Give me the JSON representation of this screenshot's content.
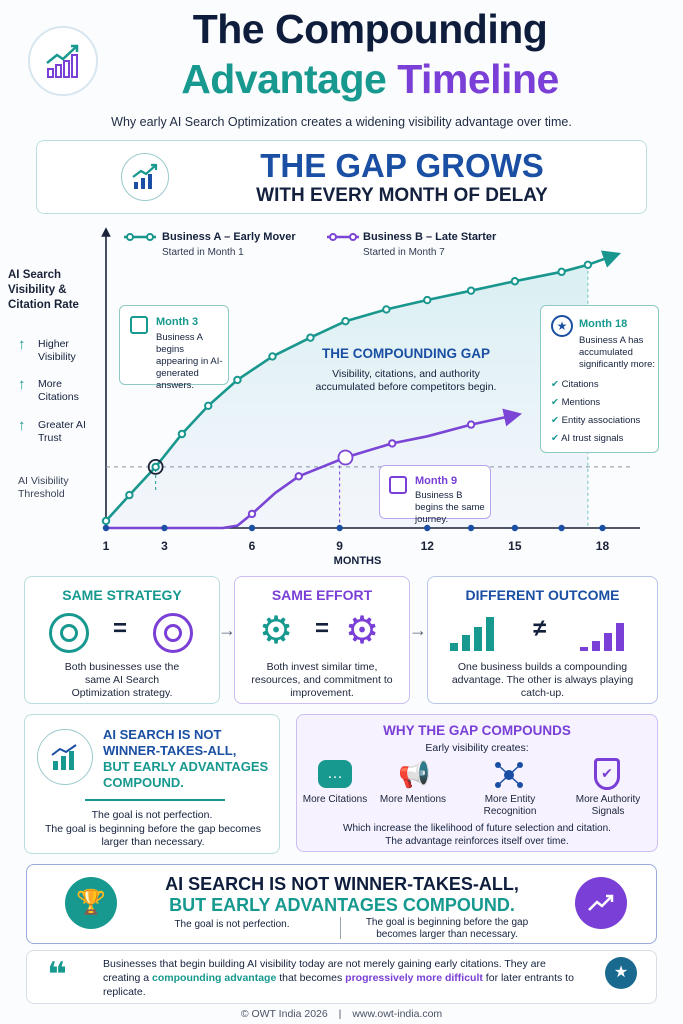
{
  "header": {
    "title_line1": "The Compounding",
    "title_line2a": "Advantage",
    "title_line2b": "Timeline",
    "subtitle": "Why early AI Search Optimization creates a widening visibility advantage over time."
  },
  "gap_box": {
    "headline": "THE GAP GROWS",
    "subline": "WITH EVERY MONTH OF DELAY"
  },
  "chart_data": {
    "type": "line",
    "xlabel": "MONTHS",
    "ylabel": "AI Search Visibility & Citation Rate",
    "x_ticks": [
      1,
      3,
      6,
      9,
      12,
      15,
      18
    ],
    "x_range": [
      1,
      18.6
    ],
    "threshold_label": "AI Visibility Threshold",
    "y_benefits": [
      "Higher Visibility",
      "More Citations",
      "Greater AI Trust"
    ],
    "series": [
      {
        "name": "Business A – Early Mover",
        "sublabel": "Started in Month 1",
        "color": "#19978e",
        "x": [
          1,
          1.8,
          2.7,
          3.6,
          4.5,
          5.5,
          6.7,
          8,
          9.2,
          10.6,
          12,
          13.5,
          15,
          16.6,
          17.5,
          18.4
        ],
        "y": [
          0.03,
          0.14,
          0.26,
          0.4,
          0.52,
          0.63,
          0.73,
          0.81,
          0.88,
          0.93,
          0.97,
          1.01,
          1.05,
          1.09,
          1.12,
          1.16
        ]
      },
      {
        "name": "Business B – Late Starter",
        "sublabel": "Started in Month 7",
        "color": "#7b45d6",
        "x": [
          1,
          3,
          5,
          5.5,
          6,
          6.8,
          7.6,
          8.4,
          9.2,
          10,
          10.8,
          12,
          13.5,
          15
        ],
        "y": [
          0.0,
          0.0,
          0.0,
          0.01,
          0.06,
          0.15,
          0.22,
          0.26,
          0.3,
          0.33,
          0.36,
          0.39,
          0.44,
          0.48
        ]
      }
    ],
    "callouts": {
      "month3": {
        "title": "Month 3",
        "text": "Business A begins appearing in AI-generated answers."
      },
      "month9": {
        "title": "Month 9",
        "text": "Business B begins the same journey."
      },
      "month18": {
        "title": "Month 18",
        "text": "Business A has accumulated significantly more:",
        "items": [
          "Citations",
          "Mentions",
          "Entity associations",
          "AI trust signals"
        ]
      },
      "gap": {
        "title": "THE COMPOUNDING GAP",
        "text": "Visibility, citations, and authority accumulated before competitors begin."
      }
    }
  },
  "strategy_cards": [
    {
      "title": "SAME STRATEGY",
      "text": "Both businesses use the same AI Search Optimization strategy.",
      "color": "#17998f"
    },
    {
      "title": "SAME EFFORT",
      "text": "Both invest similar time, resources, and commitment to improvement.",
      "color": "#7a3fd6"
    },
    {
      "title": "DIFFERENT OUTCOME",
      "text": "One business builds a compounding advantage. The other is always playing catch-up.",
      "color": "#1a4fa3"
    }
  ],
  "not_wta": {
    "line1": "AI SEARCH IS NOT",
    "line2": "WINNER-TAKES-ALL,",
    "line3": "BUT EARLY ADVANTAGES",
    "line4": "COMPOUND.",
    "text1": "The goal is not perfection.",
    "text2": "The goal is beginning before the gap becomes larger than necessary."
  },
  "why": {
    "title": "WHY THE GAP COMPOUNDS",
    "intro": "Early visibility creates:",
    "items": [
      {
        "label": "More Citations"
      },
      {
        "label": "More Mentions"
      },
      {
        "label": "More Entity Recognition"
      },
      {
        "label": "More Authority Signals"
      }
    ],
    "outro1": "Which increase the likelihood of future selection and citation.",
    "outro2": "The advantage reinforces itself over time."
  },
  "banner": {
    "line1": "AI SEARCH IS NOT WINNER-TAKES-ALL,",
    "line2": "BUT EARLY ADVANTAGES COMPOUND.",
    "left": "The goal is not perfection.",
    "right": "The goal is beginning before the gap becomes larger than necessary."
  },
  "quote": {
    "part1": "Businesses that begin building AI visibility today are not merely gaining early citations.",
    "part2": "They are creating a ",
    "hl1": "compounding advantage",
    "part3": " that becomes ",
    "hl2": "progressively more difficult",
    "part4": " for later entrants to replicate."
  },
  "footer": {
    "left": "© OWT India 2026",
    "sep": "|",
    "right": "www.owt-india.com"
  },
  "colors": {
    "teal": "#17998f",
    "purple": "#7a3fd6",
    "navy": "#1a4fa3"
  }
}
